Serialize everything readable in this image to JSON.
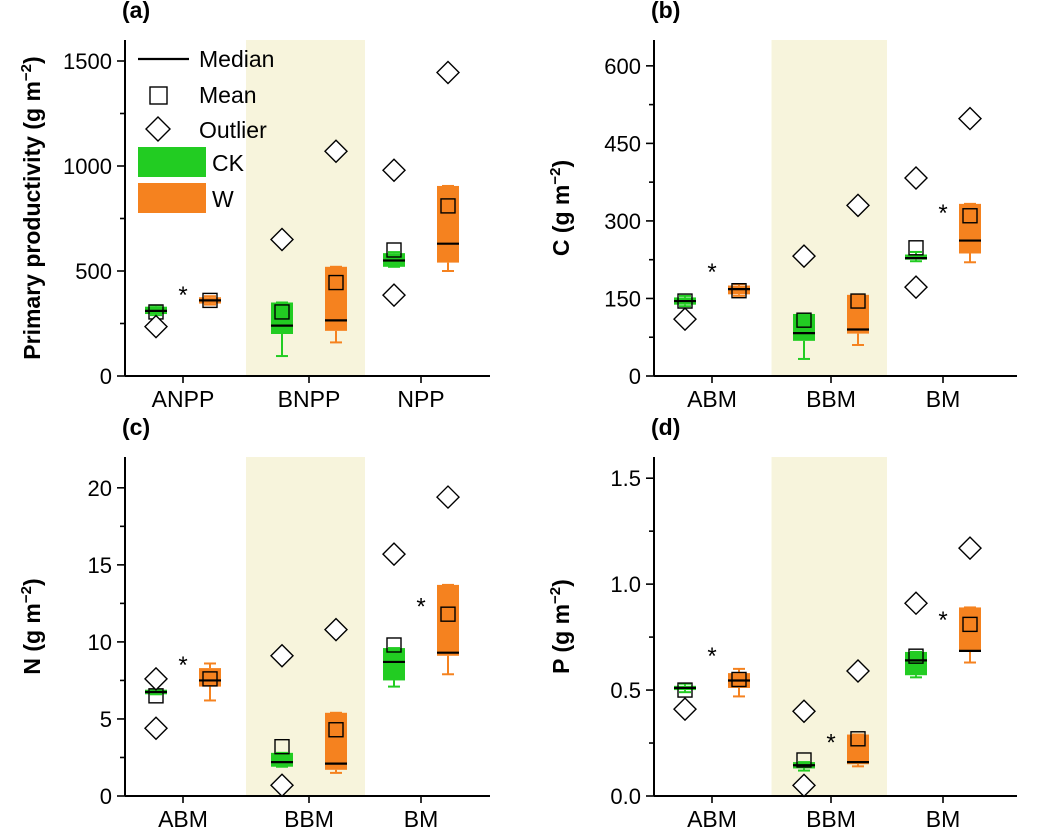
{
  "legend": {
    "median": "Median",
    "mean": "Mean",
    "outlier": "Outlier",
    "ck": "CK",
    "w": "W"
  },
  "colors": {
    "CK": "#22cc22",
    "W": "#f5821f",
    "band": "#f7f4dc"
  },
  "chart_data": [
    {
      "type": "box",
      "panel": "(a)",
      "ylabel": "Primary productivity (g m",
      "ylabel_sup": "−2",
      "ylabel_end": ")",
      "ylim": [
        0,
        1600
      ],
      "yticks": [
        0,
        500,
        1000,
        1500
      ],
      "ytick_labels": [
        "0",
        "500",
        "1000",
        "1500"
      ],
      "categories": [
        "ANPP",
        "BNPP",
        "NPP"
      ],
      "shaded_category": "BNPP",
      "groups": [
        {
          "category": "ANPP",
          "treatment": "CK",
          "q1": 295,
          "q3": 330,
          "median": 310,
          "lo": 290,
          "hi": 335,
          "mean": 305,
          "outliers": [
            235
          ]
        },
        {
          "category": "ANPP",
          "treatment": "W",
          "q1": 345,
          "q3": 375,
          "median": 360,
          "lo": 340,
          "hi": 380,
          "mean": 360,
          "outliers": []
        },
        {
          "category": "BNPP",
          "treatment": "CK",
          "q1": 200,
          "q3": 350,
          "median": 240,
          "lo": 95,
          "hi": 350,
          "mean": 305,
          "outliers": [
            650
          ]
        },
        {
          "category": "BNPP",
          "treatment": "W",
          "q1": 215,
          "q3": 520,
          "median": 265,
          "lo": 160,
          "hi": 520,
          "mean": 445,
          "outliers": [
            1070
          ]
        },
        {
          "category": "NPP",
          "treatment": "CK",
          "q1": 520,
          "q3": 585,
          "median": 550,
          "lo": 520,
          "hi": 590,
          "mean": 600,
          "outliers": [
            980,
            385
          ]
        },
        {
          "category": "NPP",
          "treatment": "W",
          "q1": 540,
          "q3": 905,
          "median": 630,
          "lo": 500,
          "hi": 905,
          "mean": 810,
          "outliers": [
            1445
          ]
        }
      ],
      "significance": [
        {
          "between_category": "ANPP",
          "value": 415,
          "label": "*"
        }
      ]
    },
    {
      "type": "box",
      "panel": "(b)",
      "ylabel": "C (g m",
      "ylabel_sup": "−2",
      "ylabel_end": ")",
      "ylim": [
        0,
        650
      ],
      "yticks": [
        0,
        150,
        300,
        450,
        600
      ],
      "ytick_labels": [
        "0",
        "150",
        "300",
        "450",
        "600"
      ],
      "categories": [
        "ABM",
        "BBM",
        "BM"
      ],
      "shaded_category": "BBM",
      "groups": [
        {
          "category": "ABM",
          "treatment": "CK",
          "q1": 138,
          "q3": 152,
          "median": 145,
          "lo": 135,
          "hi": 155,
          "mean": 145,
          "outliers": [
            110
          ]
        },
        {
          "category": "ABM",
          "treatment": "W",
          "q1": 158,
          "q3": 175,
          "median": 168,
          "lo": 155,
          "hi": 178,
          "mean": 165,
          "outliers": []
        },
        {
          "category": "BBM",
          "treatment": "CK",
          "q1": 68,
          "q3": 120,
          "median": 83,
          "lo": 33,
          "hi": 120,
          "mean": 108,
          "outliers": [
            232
          ]
        },
        {
          "category": "BBM",
          "treatment": "W",
          "q1": 82,
          "q3": 157,
          "median": 90,
          "lo": 60,
          "hi": 157,
          "mean": 145,
          "outliers": [
            330
          ]
        },
        {
          "category": "BM",
          "treatment": "CK",
          "q1": 225,
          "q3": 235,
          "median": 228,
          "lo": 222,
          "hi": 240,
          "mean": 248,
          "outliers": [
            383,
            172
          ]
        },
        {
          "category": "BM",
          "treatment": "W",
          "q1": 237,
          "q3": 333,
          "median": 262,
          "lo": 220,
          "hi": 333,
          "mean": 310,
          "outliers": [
            498
          ]
        }
      ],
      "significance": [
        {
          "between_category": "ABM",
          "value": 213,
          "label": "*"
        },
        {
          "between_category": "BM",
          "value": 327,
          "label": "*"
        }
      ]
    },
    {
      "type": "box",
      "panel": "(c)",
      "ylabel": "N (g m",
      "ylabel_sup": "−2",
      "ylabel_end": ")",
      "ylim": [
        0,
        22
      ],
      "yticks": [
        0,
        5,
        10,
        15,
        20
      ],
      "ytick_labels": [
        "0",
        "5",
        "10",
        "15",
        "20"
      ],
      "categories": [
        "ABM",
        "BBM",
        "BM"
      ],
      "shaded_category": "BBM",
      "groups": [
        {
          "category": "ABM",
          "treatment": "CK",
          "q1": 6.6,
          "q3": 6.9,
          "median": 6.75,
          "lo": 6.6,
          "hi": 6.9,
          "mean": 6.5,
          "outliers": [
            7.6,
            4.4
          ]
        },
        {
          "category": "ABM",
          "treatment": "W",
          "q1": 7.1,
          "q3": 8.3,
          "median": 7.5,
          "lo": 6.2,
          "hi": 8.6,
          "mean": 7.6,
          "outliers": []
        },
        {
          "category": "BBM",
          "treatment": "CK",
          "q1": 1.9,
          "q3": 2.8,
          "median": 2.2,
          "lo": 1.9,
          "hi": 2.8,
          "mean": 3.2,
          "outliers": [
            9.1,
            0.7
          ]
        },
        {
          "category": "BBM",
          "treatment": "W",
          "q1": 1.7,
          "q3": 5.4,
          "median": 2.1,
          "lo": 1.5,
          "hi": 5.4,
          "mean": 4.3,
          "outliers": [
            10.8
          ]
        },
        {
          "category": "BM",
          "treatment": "CK",
          "q1": 7.5,
          "q3": 9.6,
          "median": 8.7,
          "lo": 7.1,
          "hi": 9.6,
          "mean": 9.8,
          "outliers": [
            15.7
          ]
        },
        {
          "category": "BM",
          "treatment": "W",
          "q1": 9.1,
          "q3": 13.7,
          "median": 9.3,
          "lo": 7.9,
          "hi": 13.7,
          "mean": 11.8,
          "outliers": [
            19.4
          ]
        }
      ],
      "significance": [
        {
          "between_category": "ABM",
          "value": 8.9,
          "label": "*"
        },
        {
          "between_category": "BM",
          "value": 12.7,
          "label": "*"
        }
      ]
    },
    {
      "type": "box",
      "panel": "(d)",
      "ylabel": "P (g m",
      "ylabel_sup": "−2",
      "ylabel_end": ")",
      "ylim": [
        0,
        1.6
      ],
      "yticks": [
        0,
        0.5,
        1.0,
        1.5
      ],
      "ytick_labels": [
        "0.0",
        "0.5",
        "1.0",
        "1.5"
      ],
      "categories": [
        "ABM",
        "BBM",
        "BM"
      ],
      "shaded_category": "BBM",
      "groups": [
        {
          "category": "ABM",
          "treatment": "CK",
          "q1": 0.5,
          "q3": 0.52,
          "median": 0.51,
          "lo": 0.49,
          "hi": 0.53,
          "mean": 0.5,
          "outliers": [
            0.41
          ]
        },
        {
          "category": "ABM",
          "treatment": "W",
          "q1": 0.51,
          "q3": 0.58,
          "median": 0.545,
          "lo": 0.47,
          "hi": 0.6,
          "mean": 0.55,
          "outliers": []
        },
        {
          "category": "BBM",
          "treatment": "CK",
          "q1": 0.13,
          "q3": 0.16,
          "median": 0.145,
          "lo": 0.12,
          "hi": 0.16,
          "mean": 0.17,
          "outliers": [
            0.4,
            0.05
          ]
        },
        {
          "category": "BBM",
          "treatment": "W",
          "q1": 0.15,
          "q3": 0.29,
          "median": 0.16,
          "lo": 0.14,
          "hi": 0.29,
          "mean": 0.27,
          "outliers": [
            0.59
          ]
        },
        {
          "category": "BM",
          "treatment": "CK",
          "q1": 0.57,
          "q3": 0.68,
          "median": 0.64,
          "lo": 0.56,
          "hi": 0.68,
          "mean": 0.66,
          "outliers": [
            0.91
          ]
        },
        {
          "category": "BM",
          "treatment": "W",
          "q1": 0.68,
          "q3": 0.89,
          "median": 0.685,
          "lo": 0.63,
          "hi": 0.89,
          "mean": 0.81,
          "outliers": [
            1.17
          ]
        }
      ],
      "significance": [
        {
          "between_category": "ABM",
          "value": 0.69,
          "label": "*"
        },
        {
          "between_category": "BBM",
          "value": 0.28,
          "label": "*"
        },
        {
          "between_category": "BM",
          "value": 0.86,
          "label": "*"
        }
      ]
    }
  ]
}
